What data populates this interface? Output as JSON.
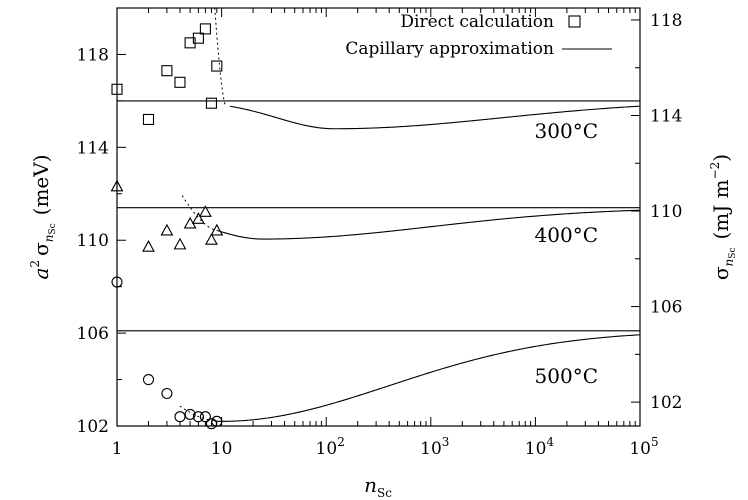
{
  "chart_data": {
    "type": "scatter",
    "x_scale": "log",
    "xlim": [
      1,
      100000
    ],
    "ylim": [
      102,
      120
    ],
    "y2lim": [
      101,
      118.5
    ],
    "x_ticks": [
      {
        "value": 1,
        "base": "1",
        "exp": ""
      },
      {
        "value": 10,
        "base": "10",
        "exp": ""
      },
      {
        "value": 100,
        "base": "10",
        "exp": "2"
      },
      {
        "value": 1000,
        "base": "10",
        "exp": "3"
      },
      {
        "value": 10000,
        "base": "10",
        "exp": "4"
      },
      {
        "value": 100000,
        "base": "10",
        "exp": "5"
      }
    ],
    "y_ticks": [
      "102",
      "106",
      "110",
      "114",
      "118"
    ],
    "y2_ticks": [
      "102",
      "106",
      "110",
      "114",
      "118"
    ],
    "xlabel": {
      "main": "n",
      "sub": "Sc"
    },
    "ylabel": {
      "a": "a",
      "sup": "2",
      "sigma": "σ",
      "n": "n",
      "sub": "Sc",
      "unit": "(meV)"
    },
    "y2label": {
      "sigma": "σ",
      "n": "n",
      "sub": "Sc",
      "unit_open": "(mJ m",
      "unit_sup": "−2",
      "unit_close": ")"
    },
    "legend": {
      "position": "top-right",
      "entries": [
        {
          "label": "Direct calculation",
          "marker": "square"
        },
        {
          "label": "Capillary approximation",
          "marker": "line"
        }
      ]
    },
    "series": [
      {
        "temperature": "300°C",
        "marker": "square",
        "limit": 116.0,
        "points": [
          [
            1,
            116.5
          ],
          [
            2,
            115.2
          ],
          [
            3,
            117.3
          ],
          [
            4,
            116.8
          ],
          [
            5,
            118.5
          ],
          [
            6,
            118.7
          ],
          [
            7,
            119.1
          ],
          [
            8,
            115.9
          ],
          [
            9,
            117.5
          ]
        ],
        "capillary": {
          "limit": 116.0,
          "dip": 1.2,
          "nmin": 120,
          "nfrom": 12
        },
        "dotted_from": 6,
        "dotted_to": 11
      },
      {
        "temperature": "400°C",
        "marker": "triangle",
        "limit": 111.4,
        "points": [
          [
            1,
            112.3
          ],
          [
            2,
            109.7
          ],
          [
            3,
            110.4
          ],
          [
            4,
            109.8
          ],
          [
            5,
            110.7
          ],
          [
            6,
            110.9
          ],
          [
            7,
            111.2
          ],
          [
            8,
            110.0
          ],
          [
            9,
            110.4
          ]
        ],
        "capillary": {
          "limit": 111.4,
          "dip": 1.35,
          "nmin": 25,
          "nfrom": 9
        },
        "dotted_from": 4.2,
        "dotted_to": 9
      },
      {
        "temperature": "500°C",
        "marker": "circle",
        "limit": 106.1,
        "points": [
          [
            1,
            108.2
          ],
          [
            2,
            104.0
          ],
          [
            3,
            103.4
          ],
          [
            4,
            102.4
          ],
          [
            5,
            102.5
          ],
          [
            6,
            102.4
          ],
          [
            7,
            102.4
          ],
          [
            8,
            102.1
          ],
          [
            9,
            102.2
          ]
        ],
        "capillary": {
          "limit": 106.1,
          "dip": 3.9,
          "nmin": 10,
          "nfrom": 8
        },
        "dotted_from": 4,
        "dotted_to": 8
      }
    ]
  }
}
